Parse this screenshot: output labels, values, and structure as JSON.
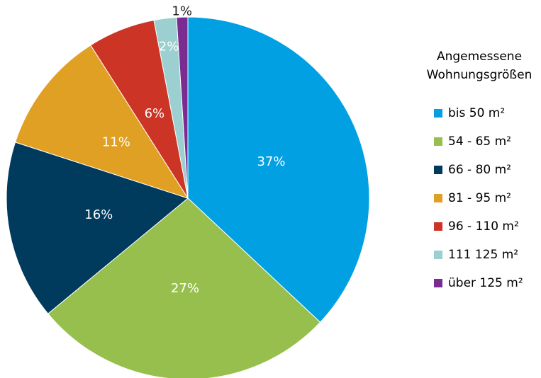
{
  "chart_data": {
    "type": "pie",
    "legend_title": [
      "Angemessene",
      "Wohnungsgrößen"
    ],
    "categories": [
      "bis 50 m²",
      "54 - 65 m²",
      "66 - 80 m²",
      "81 - 95 m²",
      "96 - 110 m²",
      "111 125 m²",
      "über 125 m²"
    ],
    "values": [
      37,
      27,
      16,
      11,
      6,
      2,
      1
    ],
    "value_labels": [
      "37%",
      "27%",
      "16%",
      "11%",
      "6%",
      "2%",
      "1%"
    ],
    "colors": [
      "#00a0e3",
      "#97bf4e",
      "#003a5c",
      "#e0a024",
      "#cc3425",
      "#9ccfcf",
      "#7b2c91"
    ],
    "legend": "right"
  }
}
